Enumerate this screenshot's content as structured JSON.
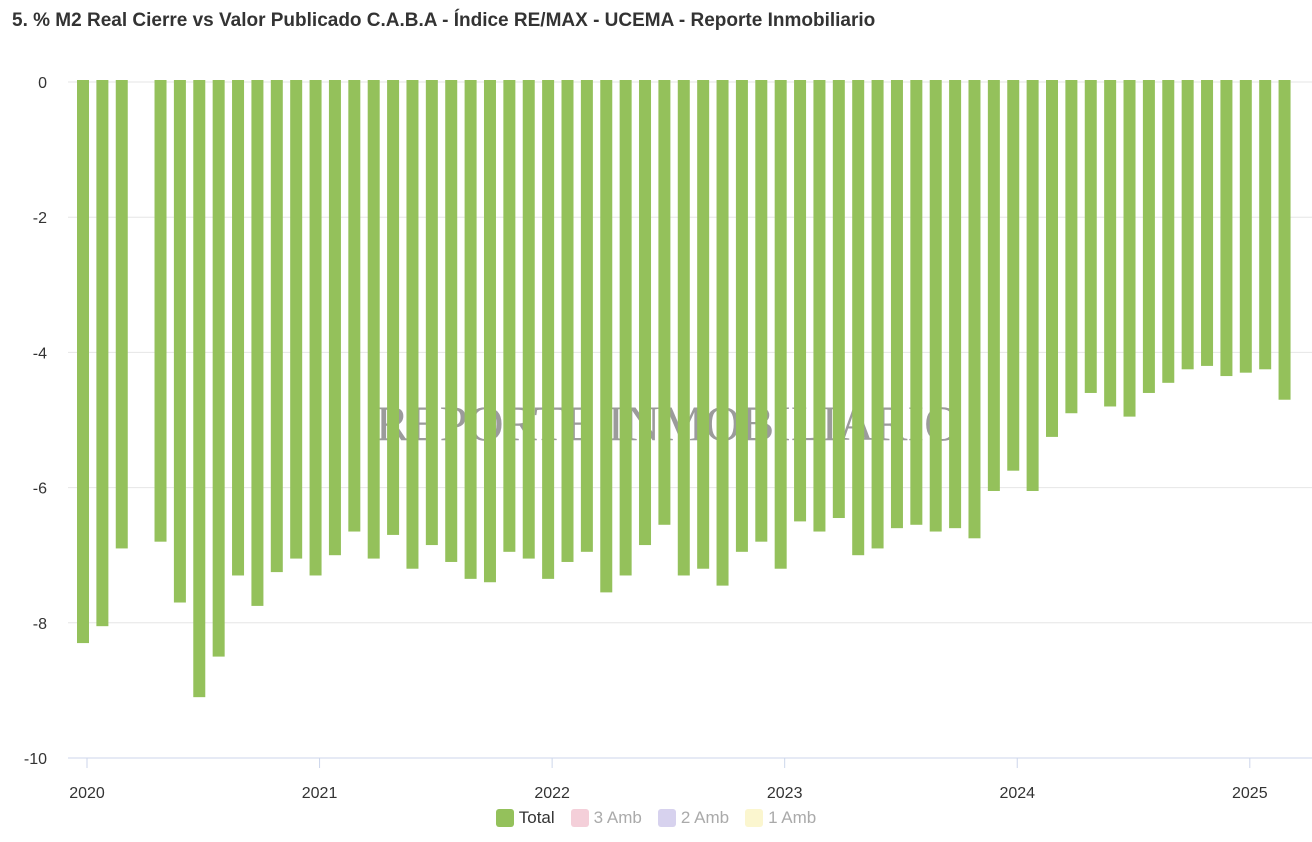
{
  "title": "5. % M2 Real Cierre vs Valor Publicado C.A.B.A - Índice RE/MAX - UCEMA - Reporte Inmobiliario",
  "watermark": "REPORTE INMOBILIARIO",
  "legend": [
    {
      "name": "Total",
      "color": "#94c15b",
      "active": true
    },
    {
      "name": "3 Amb",
      "color": "#f4cfd9",
      "active": false
    },
    {
      "name": "2 Amb",
      "color": "#d7d2ee",
      "active": false
    },
    {
      "name": "1 Amb",
      "color": "#fbf6cf",
      "active": false
    }
  ],
  "chart_data": {
    "type": "bar",
    "title": "5. % M2 Real Cierre vs Valor Publicado C.A.B.A - Índice RE/MAX - UCEMA - Reporte Inmobiliario",
    "xlabel": "",
    "ylabel": "",
    "ylim": [
      -10,
      0
    ],
    "yticks": [
      "0",
      "-2",
      "-4",
      "-6",
      "-8",
      "-10"
    ],
    "xticks": [
      "2020",
      "2021",
      "2022",
      "2023",
      "2024",
      "2025"
    ],
    "x_start": "2020-01",
    "grid": true,
    "legend_position": "bottom",
    "series": [
      {
        "name": "Total",
        "color": "#94c15b",
        "x": [
          "2020-01",
          "2020-02",
          "2020-03",
          "2020-04",
          "2020-05",
          "2020-06",
          "2020-07",
          "2020-08",
          "2020-09",
          "2020-10",
          "2020-11",
          "2020-12",
          "2021-01",
          "2021-02",
          "2021-03",
          "2021-04",
          "2021-05",
          "2021-06",
          "2021-07",
          "2021-08",
          "2021-09",
          "2021-10",
          "2021-11",
          "2021-12",
          "2022-01",
          "2022-02",
          "2022-03",
          "2022-04",
          "2022-05",
          "2022-06",
          "2022-07",
          "2022-08",
          "2022-09",
          "2022-10",
          "2022-11",
          "2022-12",
          "2023-01",
          "2023-02",
          "2023-03",
          "2023-04",
          "2023-05",
          "2023-06",
          "2023-07",
          "2023-08",
          "2023-09",
          "2023-10",
          "2023-11",
          "2023-12",
          "2024-01",
          "2024-02",
          "2024-03",
          "2024-04",
          "2024-05",
          "2024-06",
          "2024-07",
          "2024-08",
          "2024-09",
          "2024-10",
          "2024-11",
          "2024-12",
          "2025-01",
          "2025-02",
          "2025-03"
        ],
        "values": [
          -8.3,
          -8.05,
          -6.9,
          null,
          -6.8,
          -7.7,
          -9.1,
          -8.5,
          -7.3,
          -7.75,
          -7.25,
          -7.05,
          -7.3,
          -7.0,
          -6.65,
          -7.05,
          -6.7,
          -7.2,
          -6.85,
          -7.1,
          -7.35,
          -7.4,
          -6.95,
          -7.05,
          -7.35,
          -7.1,
          -6.95,
          -7.55,
          -7.3,
          -6.85,
          -6.55,
          -7.3,
          -7.2,
          -7.45,
          -6.95,
          -6.8,
          -7.2,
          -6.5,
          -6.65,
          -6.45,
          -7.0,
          -6.9,
          -6.6,
          -6.55,
          -6.65,
          -6.6,
          -6.75,
          -6.05,
          -5.75,
          -6.05,
          -5.25,
          -4.9,
          -4.6,
          -4.8,
          -4.95,
          -4.6,
          -4.45,
          -4.25,
          -4.2,
          -4.35,
          -4.3,
          -4.25,
          -4.7
        ]
      },
      {
        "name": "3 Amb",
        "color": "#f4cfd9",
        "hidden": true
      },
      {
        "name": "2 Amb",
        "color": "#d7d2ee",
        "hidden": true
      },
      {
        "name": "1 Amb",
        "color": "#fbf6cf",
        "hidden": true
      }
    ]
  }
}
